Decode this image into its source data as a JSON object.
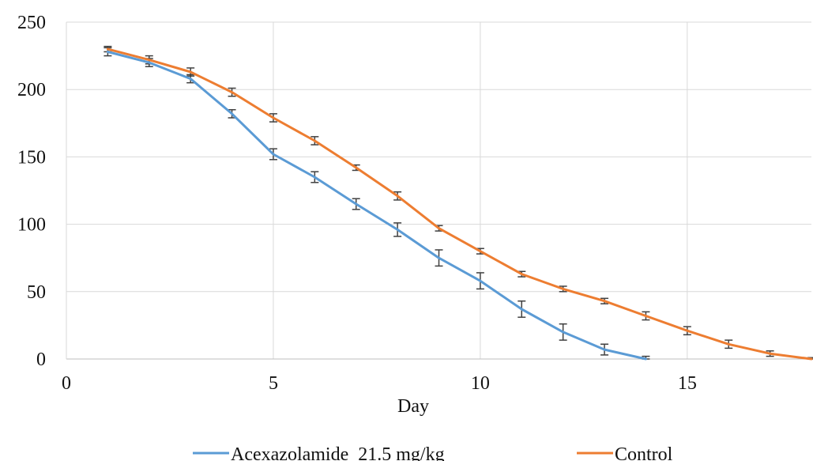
{
  "chart_data": {
    "type": "line",
    "xlabel": "Day",
    "ylabel": "",
    "xlim": [
      0,
      18
    ],
    "ylim": [
      0,
      250
    ],
    "xticks": [
      0,
      5,
      10,
      15
    ],
    "yticks": [
      0,
      50,
      100,
      150,
      200,
      250
    ],
    "grid": "on",
    "legend": "bottom",
    "series": [
      {
        "name": "Acexazolamide  21.5 mg/kg",
        "color": "#5B9BD5",
        "x": [
          1,
          2,
          3,
          4,
          5,
          6,
          7,
          8,
          9,
          10,
          11,
          12,
          13,
          14
        ],
        "values": [
          228,
          220,
          208,
          182,
          152,
          135,
          115,
          96,
          75,
          58,
          37,
          20,
          7,
          0
        ],
        "err": [
          3,
          3,
          3,
          3,
          4,
          4,
          4,
          5,
          6,
          6,
          6,
          6,
          4,
          2
        ]
      },
      {
        "name": "Control",
        "color": "#ED7D31",
        "x": [
          1,
          2,
          3,
          4,
          5,
          6,
          7,
          8,
          9,
          10,
          11,
          12,
          13,
          14,
          15,
          16,
          17,
          18
        ],
        "values": [
          230,
          222,
          213,
          198,
          179,
          162,
          142,
          121,
          97,
          80,
          63,
          52,
          43,
          32,
          21,
          11,
          4,
          0
        ],
        "err": [
          2,
          3,
          3,
          3,
          3,
          3,
          2,
          3,
          2,
          2,
          2,
          2,
          2,
          3,
          3,
          3,
          2,
          1
        ]
      }
    ]
  }
}
